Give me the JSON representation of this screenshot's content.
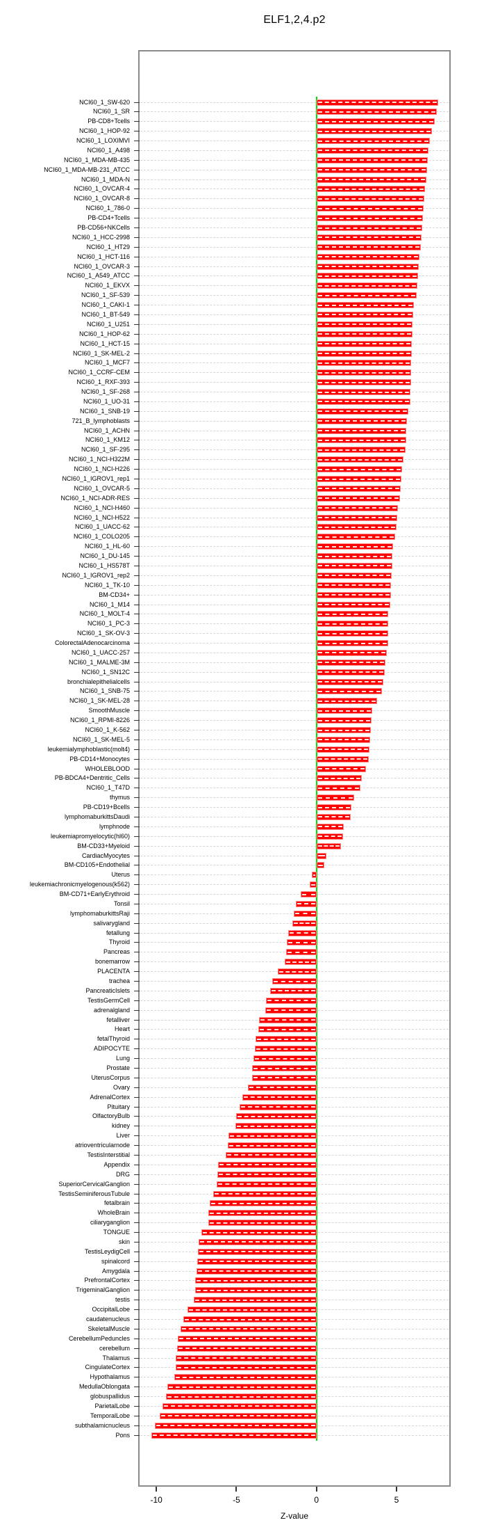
{
  "title": "ELF1,2,4.p2",
  "chart_data": {
    "type": "bar",
    "orientation": "horizontal",
    "title": "ELF1,2,4.p2",
    "xlabel": "Z-value",
    "xlim": [
      -11.05,
      8.3
    ],
    "xticks": [
      -10,
      -5,
      0,
      5
    ],
    "grid": true,
    "legend": "none",
    "bar_color": "#ff0000",
    "zero_line_color": "#00e300",
    "categories": [
      "NCI60_1_SW-620",
      "NCI60_1_SR",
      "PB-CD8+Tcells",
      "NCI60_1_HOP-92",
      "NCI60_1_LOXIMVI",
      "NCI60_1_A498",
      "NCI60_1_MDA-MB-435",
      "NCI60_1_MDA-MB-231_ATCC",
      "NCI60_1_MDA-N",
      "NCI60_1_OVCAR-4",
      "NCI60_1_OVCAR-8",
      "NCI60_1_786-0",
      "PB-CD4+Tcells",
      "PB-CD56+NKCells",
      "NCI60_1_HCC-2998",
      "NCI60_1_HT29",
      "NCI60_1_HCT-116",
      "NCI60_1_OVCAR-3",
      "NCI60_1_A549_ATCC",
      "NCI60_1_EKVX",
      "NCI60_1_SF-539",
      "NCI60_1_CAKI-1",
      "NCI60_1_BT-549",
      "NCI60_1_U251",
      "NCI60_1_HOP-62",
      "NCI60_1_HCT-15",
      "NCI60_1_SK-MEL-2",
      "NCI60_1_MCF7",
      "NCI60_1_CCRF-CEM",
      "NCI60_1_RXF-393",
      "NCI60_1_SF-268",
      "NCI60_1_UO-31",
      "NCI60_1_SNB-19",
      "721_B_lymphoblasts",
      "NCI60_1_ACHN",
      "NCI60_1_KM12",
      "NCI60_1_SF-295",
      "NCI60_1_NCI-H322M",
      "NCI60_1_NCI-H226",
      "NCI60_1_IGROV1_rep1",
      "NCI60_1_OVCAR-5",
      "NCI60_1_NCI-ADR-RES",
      "NCI60_1_NCI-H460",
      "NCI60_1_NCI-H522",
      "NCI60_1_UACC-62",
      "NCI60_1_COLO205",
      "NCI60_1_HL-60",
      "NCI60_1_DU-145",
      "NCI60_1_HS578T",
      "NCI60_1_IGROV1_rep2",
      "NCI60_1_TK-10",
      "BM-CD34+",
      "NCI60_1_M14",
      "NCI60_1_MOLT-4",
      "NCI60_1_PC-3",
      "NCI60_1_SK-OV-3",
      "ColorectalAdenocarcinoma",
      "NCI60_1_UACC-257",
      "NCI60_1_MALME-3M",
      "NCI60_1_SN12C",
      "bronchialepithelialcells",
      "NCI60_1_SNB-75",
      "NCI60_1_SK-MEL-28",
      "SmoothMuscle",
      "NCI60_1_RPMI-8226",
      "NCI60_1_K-562",
      "NCI60_1_SK-MEL-5",
      "leukemialymphoblastic(molt4)",
      "PB-CD14+Monocytes",
      "WHOLEBLOOD",
      "PB-BDCA4+Dentritic_Cells",
      "NCI60_1_T47D",
      "thymus",
      "PB-CD19+Bcells",
      "lymphomaburkittsDaudi",
      "lymphnode",
      "leukemiapromyelocytic(hl60)",
      "BM-CD33+Myeloid",
      "CardiacMyocytes",
      "BM-CD105+Endothelial",
      "Uterus",
      "leukemiachronicmyelogenous(k562)",
      "BM-CD71+EarlyErythroid",
      "Tonsil",
      "lymphomaburkittsRaji",
      "salivarygland",
      "fetallung",
      "Thyroid",
      "Pancreas",
      "bonemarrow",
      "PLACENTA",
      "trachea",
      "PancreaticIslets",
      "TestisGermCell",
      "adrenalgland",
      "fetalliver",
      "Heart",
      "fetalThyroid",
      "ADIPOCYTE",
      "Lung",
      "Prostate",
      "UterusCorpus",
      "Ovary",
      "AdrenalCortex",
      "Pituitary",
      "OlfactoryBulb",
      "kidney",
      "Liver",
      "atrioventricularnode",
      "TestisInterstitial",
      "Appendix",
      "DRG",
      "SuperiorCervicalGanglion",
      "TestisSeminiferousTubule",
      "fetalbrain",
      "WholeBrain",
      "ciliaryganglion",
      "TONGUE",
      "skin",
      "TestisLeydigCell",
      "spinalcord",
      "Amygdala",
      "PrefrontalCortex",
      "TrigeminalGanglion",
      "testis",
      "OccipitalLobe",
      "caudatenucleus",
      "SkeletalMuscle",
      "CerebellumPeduncles",
      "cerebellum",
      "Thalamus",
      "CingulateCortex",
      "Hypothalamus",
      "MedullaOblongata",
      "globuspallidus",
      "ParietalLobe",
      "TemporalLobe",
      "subthalamicnucleus",
      "Pons"
    ],
    "values": [
      7.6,
      7.5,
      7.4,
      7.2,
      7.1,
      7.0,
      6.95,
      6.9,
      6.85,
      6.8,
      6.75,
      6.7,
      6.65,
      6.6,
      6.55,
      6.5,
      6.45,
      6.4,
      6.35,
      6.3,
      6.25,
      6.1,
      6.05,
      6.0,
      6.0,
      5.95,
      5.95,
      5.9,
      5.9,
      5.9,
      5.85,
      5.85,
      5.75,
      5.65,
      5.6,
      5.6,
      5.55,
      5.45,
      5.35,
      5.3,
      5.25,
      5.2,
      5.1,
      5.05,
      5.0,
      4.9,
      4.8,
      4.75,
      4.75,
      4.7,
      4.65,
      4.65,
      4.6,
      4.5,
      4.5,
      4.5,
      4.5,
      4.4,
      4.3,
      4.25,
      4.2,
      4.1,
      3.8,
      3.5,
      3.45,
      3.4,
      3.35,
      3.3,
      3.25,
      3.1,
      2.85,
      2.75,
      2.35,
      2.2,
      2.15,
      1.7,
      1.65,
      1.55,
      0.6,
      0.5,
      -0.3,
      -0.4,
      -1.0,
      -1.3,
      -1.4,
      -1.5,
      -1.75,
      -1.85,
      -1.9,
      -2.0,
      -2.4,
      -2.75,
      -2.9,
      -3.15,
      -3.2,
      -3.6,
      -3.65,
      -3.8,
      -3.85,
      -3.95,
      -4.0,
      -4.0,
      -4.3,
      -4.65,
      -4.8,
      -5.0,
      -5.05,
      -5.5,
      -5.55,
      -5.65,
      -6.15,
      -6.2,
      -6.25,
      -6.45,
      -6.65,
      -6.75,
      -6.75,
      -7.2,
      -7.35,
      -7.4,
      -7.45,
      -7.5,
      -7.6,
      -7.6,
      -7.65,
      -8.05,
      -8.3,
      -8.5,
      -8.65,
      -8.7,
      -8.8,
      -8.8,
      -8.9,
      -9.3,
      -9.4,
      -9.6,
      -9.8,
      -10.1,
      -10.3
    ]
  }
}
